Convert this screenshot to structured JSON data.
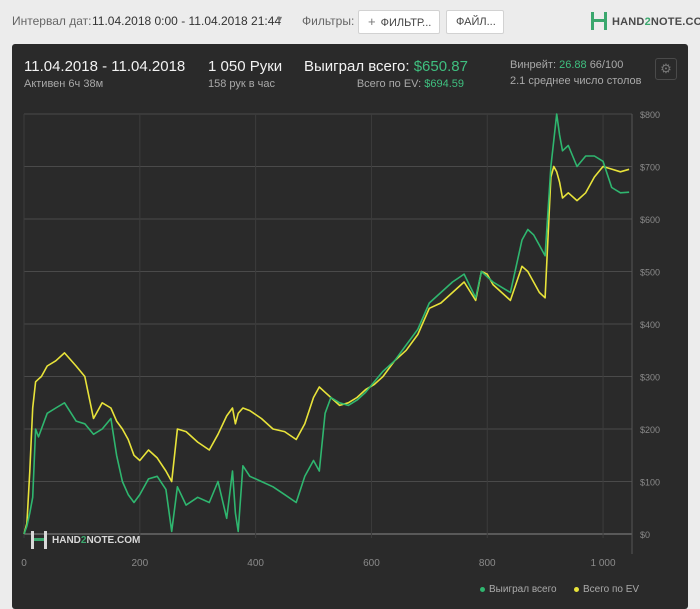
{
  "toolbar": {
    "interval_label": "Интервал дат:",
    "interval_value": "11.04.2018 0:00 - 11.04.2018 21:44",
    "filters_label": "Фильтры:",
    "filter_button": "ФИЛЬТР...",
    "file_button": "ФАЙЛ...",
    "logo_prefix": "HAND",
    "logo_two": "2",
    "logo_suffix": "NOTE.COM"
  },
  "summary": {
    "date_range": "11.04.2018 - 11.04.2018",
    "active": "Активен 6ч 38м",
    "hands": "1 050 Руки",
    "hands_per_hour": "158 рук в час",
    "won_label": "Выиграл всего:",
    "won_value": "$650.87",
    "ev_label": "Всего по EV:",
    "ev_value": "$694.59",
    "winrate_label": "Винрейт:",
    "winrate_value": "26.88",
    "winrate_suffix": "66/100",
    "avg_tables": "2.1 среднее число столов"
  },
  "colors": {
    "won": "#2fb66f",
    "ev": "#e8e33a",
    "panel": "#2a2a2a",
    "grid": "#555555"
  },
  "chart_data": {
    "type": "line",
    "xlim": [
      0,
      1050
    ],
    "ylim": [
      0,
      800
    ],
    "x_ticks": [
      0,
      200,
      400,
      600,
      800,
      1000
    ],
    "y_ticks": [
      0,
      100,
      200,
      300,
      400,
      500,
      600,
      700,
      800
    ],
    "y_tick_labels": [
      "$0",
      "$100",
      "$200",
      "$300",
      "$400",
      "$500",
      "$600",
      "$700",
      "$800"
    ],
    "grid": true,
    "legend_position": "bottom-right",
    "series": [
      {
        "name": "Выиграл всего",
        "color": "#2fb66f",
        "x": [
          0,
          5,
          10,
          15,
          20,
          25,
          30,
          40,
          55,
          70,
          90,
          105,
          120,
          135,
          150,
          160,
          170,
          180,
          190,
          200,
          215,
          230,
          245,
          255,
          265,
          280,
          300,
          320,
          335,
          350,
          360,
          365,
          370,
          378,
          390,
          410,
          430,
          450,
          470,
          485,
          500,
          510,
          520,
          530,
          545,
          560,
          575,
          590,
          605,
          620,
          640,
          660,
          680,
          700,
          720,
          740,
          760,
          780,
          790,
          800,
          810,
          825,
          840,
          860,
          870,
          880,
          890,
          900,
          910,
          915,
          920,
          925,
          930,
          940,
          955,
          970,
          985,
          1000,
          1015,
          1030,
          1045
        ],
        "y": [
          0,
          15,
          40,
          70,
          200,
          185,
          200,
          230,
          240,
          250,
          215,
          210,
          190,
          200,
          220,
          150,
          100,
          75,
          60,
          75,
          105,
          110,
          85,
          5,
          90,
          55,
          70,
          60,
          100,
          30,
          120,
          40,
          5,
          130,
          110,
          100,
          90,
          75,
          60,
          110,
          140,
          120,
          230,
          260,
          250,
          245,
          255,
          270,
          290,
          310,
          330,
          360,
          390,
          440,
          460,
          480,
          495,
          450,
          500,
          490,
          480,
          470,
          460,
          560,
          580,
          570,
          550,
          530,
          700,
          750,
          800,
          760,
          730,
          740,
          700,
          720,
          720,
          710,
          660,
          650,
          651
        ]
      },
      {
        "name": "Всего по EV",
        "color": "#e8e33a",
        "x": [
          0,
          5,
          10,
          15,
          20,
          25,
          30,
          40,
          55,
          70,
          90,
          105,
          120,
          135,
          150,
          160,
          170,
          180,
          190,
          200,
          215,
          230,
          245,
          255,
          265,
          280,
          300,
          320,
          335,
          350,
          360,
          365,
          370,
          378,
          390,
          410,
          430,
          450,
          470,
          485,
          500,
          510,
          520,
          530,
          545,
          560,
          575,
          590,
          605,
          620,
          640,
          660,
          680,
          700,
          720,
          740,
          760,
          780,
          790,
          800,
          810,
          825,
          840,
          860,
          870,
          880,
          890,
          900,
          910,
          915,
          920,
          925,
          930,
          940,
          955,
          970,
          985,
          1000,
          1015,
          1030,
          1045
        ],
        "y": [
          0,
          20,
          120,
          240,
          290,
          295,
          300,
          320,
          330,
          345,
          320,
          300,
          220,
          250,
          240,
          215,
          200,
          180,
          150,
          140,
          160,
          145,
          120,
          100,
          200,
          195,
          175,
          160,
          190,
          225,
          240,
          210,
          230,
          240,
          235,
          220,
          200,
          195,
          180,
          210,
          260,
          280,
          270,
          260,
          245,
          250,
          260,
          275,
          285,
          300,
          330,
          350,
          380,
          430,
          440,
          460,
          480,
          445,
          500,
          495,
          475,
          460,
          445,
          510,
          500,
          480,
          460,
          450,
          680,
          700,
          690,
          670,
          640,
          650,
          635,
          650,
          680,
          700,
          695,
          690,
          694.59
        ]
      }
    ]
  }
}
